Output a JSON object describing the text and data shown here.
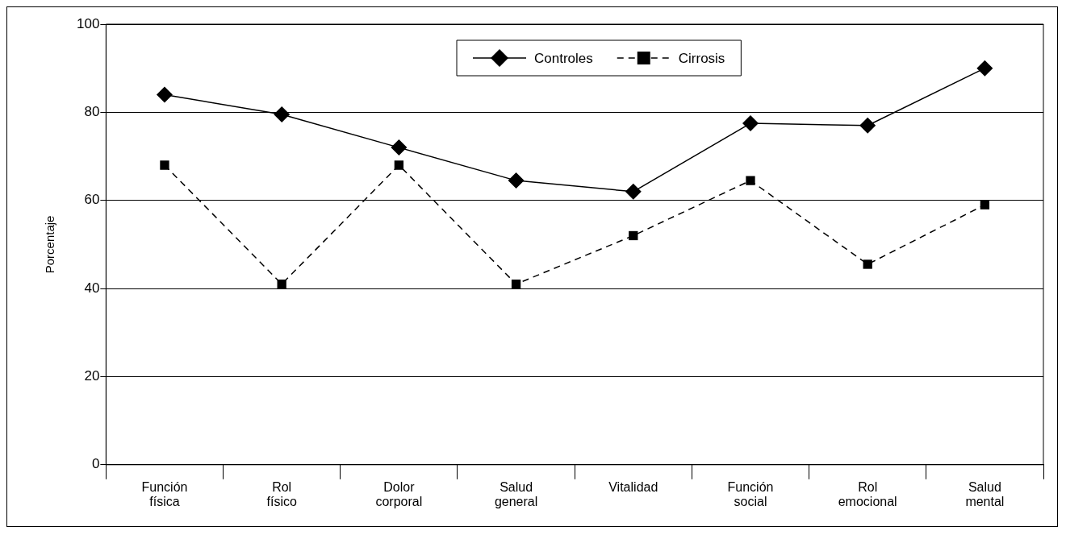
{
  "chart_data": {
    "type": "line",
    "ylabel": "Porcentaje",
    "categories": [
      "Función física",
      "Rol físico",
      "Dolor corporal",
      "Salud general",
      "Vitalidad",
      "Función social",
      "Rol emocional",
      "Salud mental"
    ],
    "series": [
      {
        "name": "Controles",
        "color": "#000000",
        "marker": "diamond",
        "line_style": "solid",
        "values": [
          84,
          79.5,
          72,
          64.5,
          62,
          77.5,
          77,
          90
        ]
      },
      {
        "name": "Cirrosis",
        "color": "#000000",
        "marker": "square",
        "line_style": "dashed",
        "values": [
          68,
          41,
          68,
          41,
          52,
          64.5,
          45.5,
          59
        ]
      }
    ],
    "ylim": [
      0,
      100
    ],
    "yticks": [
      0,
      20,
      40,
      60,
      80,
      100
    ],
    "grid": "y",
    "legend": "top"
  }
}
